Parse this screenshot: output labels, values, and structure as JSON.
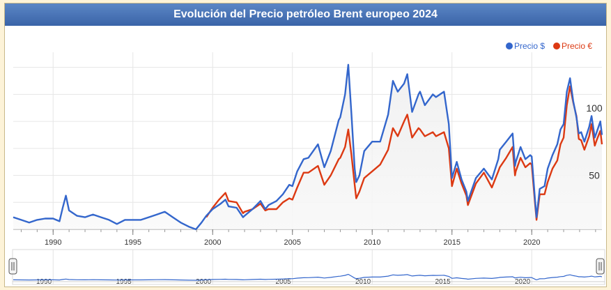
{
  "title": "Evolución del Precio petróleo Brent europeo 2024",
  "legend": [
    {
      "label": "Precio $",
      "color": "#3366cc"
    },
    {
      "label": "Precio €",
      "color": "#dc3912"
    }
  ],
  "chart_data": {
    "type": "line",
    "title": "Evolución del Precio petróleo Brent europeo 2024",
    "xlim": [
      1987.5,
      2024.4
    ],
    "ylim": [
      10,
      135
    ],
    "x_ticks": [
      1990,
      1995,
      2000,
      2005,
      2010,
      2015,
      2020
    ],
    "y_ticks": [
      50,
      100
    ],
    "grid": true,
    "legend_position": "top-right",
    "series": [
      {
        "name": "Precio $",
        "color": "#3366cc",
        "points": [
          [
            1987.5,
            19
          ],
          [
            1988.0,
            17
          ],
          [
            1988.5,
            15
          ],
          [
            1989.0,
            17
          ],
          [
            1989.5,
            18
          ],
          [
            1990.0,
            18
          ],
          [
            1990.4,
            16
          ],
          [
            1990.6,
            26
          ],
          [
            1990.8,
            35
          ],
          [
            1991.0,
            24
          ],
          [
            1991.5,
            20
          ],
          [
            1992.0,
            19
          ],
          [
            1992.5,
            21
          ],
          [
            1993.0,
            19
          ],
          [
            1993.5,
            17
          ],
          [
            1994.0,
            14
          ],
          [
            1994.5,
            17
          ],
          [
            1995.0,
            17
          ],
          [
            1995.5,
            17
          ],
          [
            1996.0,
            19
          ],
          [
            1996.5,
            21
          ],
          [
            1997.0,
            23
          ],
          [
            1997.5,
            19
          ],
          [
            1998.0,
            15
          ],
          [
            1998.5,
            12
          ],
          [
            1998.95,
            10
          ],
          [
            1999.3,
            15
          ],
          [
            1999.6,
            20
          ],
          [
            2000.0,
            25
          ],
          [
            2000.5,
            29
          ],
          [
            2000.8,
            32
          ],
          [
            2001.0,
            27
          ],
          [
            2001.5,
            26
          ],
          [
            2001.9,
            19
          ],
          [
            2002.0,
            20
          ],
          [
            2002.5,
            25
          ],
          [
            2003.0,
            31
          ],
          [
            2003.3,
            25
          ],
          [
            2003.5,
            28
          ],
          [
            2004.0,
            31
          ],
          [
            2004.4,
            36
          ],
          [
            2004.8,
            43
          ],
          [
            2005.0,
            42
          ],
          [
            2005.3,
            53
          ],
          [
            2005.7,
            62
          ],
          [
            2006.0,
            63
          ],
          [
            2006.6,
            73
          ],
          [
            2007.0,
            56
          ],
          [
            2007.4,
            68
          ],
          [
            2007.9,
            91
          ],
          [
            2008.0,
            93
          ],
          [
            2008.3,
            110
          ],
          [
            2008.5,
            132
          ],
          [
            2008.7,
            95
          ],
          [
            2008.9,
            55
          ],
          [
            2009.0,
            45
          ],
          [
            2009.2,
            50
          ],
          [
            2009.5,
            68
          ],
          [
            2010.0,
            75
          ],
          [
            2010.5,
            75
          ],
          [
            2011.0,
            95
          ],
          [
            2011.3,
            120
          ],
          [
            2011.6,
            112
          ],
          [
            2012.0,
            118
          ],
          [
            2012.2,
            125
          ],
          [
            2012.5,
            97
          ],
          [
            2012.9,
            110
          ],
          [
            2013.0,
            112
          ],
          [
            2013.3,
            102
          ],
          [
            2013.8,
            110
          ],
          [
            2014.0,
            108
          ],
          [
            2014.5,
            112
          ],
          [
            2014.8,
            88
          ],
          [
            2015.0,
            48
          ],
          [
            2015.3,
            60
          ],
          [
            2015.6,
            47
          ],
          [
            2015.9,
            38
          ],
          [
            2016.0,
            31
          ],
          [
            2016.5,
            48
          ],
          [
            2017.0,
            55
          ],
          [
            2017.5,
            47
          ],
          [
            2017.9,
            62
          ],
          [
            2018.0,
            69
          ],
          [
            2018.4,
            75
          ],
          [
            2018.8,
            81
          ],
          [
            2018.95,
            57
          ],
          [
            2019.0,
            60
          ],
          [
            2019.3,
            71
          ],
          [
            2019.6,
            62
          ],
          [
            2019.9,
            65
          ],
          [
            2020.0,
            64
          ],
          [
            2020.2,
            33
          ],
          [
            2020.3,
            19
          ],
          [
            2020.5,
            40
          ],
          [
            2020.8,
            42
          ],
          [
            2021.0,
            55
          ],
          [
            2021.3,
            65
          ],
          [
            2021.6,
            73
          ],
          [
            2021.8,
            84
          ],
          [
            2022.0,
            88
          ],
          [
            2022.2,
            112
          ],
          [
            2022.4,
            122
          ],
          [
            2022.6,
            105
          ],
          [
            2022.8,
            93
          ],
          [
            2022.95,
            81
          ],
          [
            2023.1,
            82
          ],
          [
            2023.3,
            75
          ],
          [
            2023.6,
            86
          ],
          [
            2023.75,
            94
          ],
          [
            2023.95,
            78
          ],
          [
            2024.1,
            83
          ],
          [
            2024.3,
            90
          ],
          [
            2024.4,
            80
          ]
        ]
      },
      {
        "name": "Precio €",
        "color": "#dc3912",
        "points": [
          [
            1999.6,
            19
          ],
          [
            2000.0,
            26
          ],
          [
            2000.4,
            32
          ],
          [
            2000.8,
            37
          ],
          [
            2001.0,
            31
          ],
          [
            2001.5,
            30
          ],
          [
            2001.9,
            22
          ],
          [
            2002.0,
            23
          ],
          [
            2002.5,
            25
          ],
          [
            2003.0,
            29
          ],
          [
            2003.3,
            24
          ],
          [
            2003.5,
            25
          ],
          [
            2004.0,
            25
          ],
          [
            2004.4,
            30
          ],
          [
            2004.8,
            33
          ],
          [
            2005.0,
            32
          ],
          [
            2005.3,
            41
          ],
          [
            2005.7,
            52
          ],
          [
            2006.0,
            52
          ],
          [
            2006.6,
            57
          ],
          [
            2007.0,
            43
          ],
          [
            2007.4,
            50
          ],
          [
            2007.9,
            62
          ],
          [
            2008.0,
            63
          ],
          [
            2008.3,
            71
          ],
          [
            2008.5,
            84
          ],
          [
            2008.7,
            65
          ],
          [
            2008.9,
            43
          ],
          [
            2009.0,
            33
          ],
          [
            2009.2,
            38
          ],
          [
            2009.5,
            48
          ],
          [
            2010.0,
            53
          ],
          [
            2010.5,
            58
          ],
          [
            2011.0,
            69
          ],
          [
            2011.3,
            85
          ],
          [
            2011.6,
            79
          ],
          [
            2012.0,
            90
          ],
          [
            2012.2,
            95
          ],
          [
            2012.5,
            78
          ],
          [
            2012.9,
            85
          ],
          [
            2013.0,
            84
          ],
          [
            2013.3,
            79
          ],
          [
            2013.8,
            82
          ],
          [
            2014.0,
            79
          ],
          [
            2014.5,
            82
          ],
          [
            2014.8,
            70
          ],
          [
            2015.0,
            42
          ],
          [
            2015.3,
            55
          ],
          [
            2015.6,
            44
          ],
          [
            2015.9,
            35
          ],
          [
            2016.0,
            28
          ],
          [
            2016.5,
            44
          ],
          [
            2017.0,
            52
          ],
          [
            2017.5,
            41
          ],
          [
            2017.9,
            53
          ],
          [
            2018.0,
            56
          ],
          [
            2018.4,
            63
          ],
          [
            2018.8,
            71
          ],
          [
            2018.95,
            50
          ],
          [
            2019.0,
            53
          ],
          [
            2019.3,
            63
          ],
          [
            2019.6,
            56
          ],
          [
            2019.9,
            59
          ],
          [
            2020.0,
            58
          ],
          [
            2020.2,
            30
          ],
          [
            2020.3,
            17
          ],
          [
            2020.5,
            36
          ],
          [
            2020.8,
            36
          ],
          [
            2021.0,
            45
          ],
          [
            2021.3,
            55
          ],
          [
            2021.6,
            61
          ],
          [
            2021.8,
            73
          ],
          [
            2022.0,
            78
          ],
          [
            2022.2,
            102
          ],
          [
            2022.4,
            116
          ],
          [
            2022.6,
            104
          ],
          [
            2022.8,
            94
          ],
          [
            2022.95,
            77
          ],
          [
            2023.1,
            76
          ],
          [
            2023.3,
            69
          ],
          [
            2023.6,
            79
          ],
          [
            2023.75,
            88
          ],
          [
            2023.95,
            72
          ],
          [
            2024.1,
            77
          ],
          [
            2024.3,
            83
          ],
          [
            2024.4,
            73
          ]
        ]
      }
    ]
  }
}
